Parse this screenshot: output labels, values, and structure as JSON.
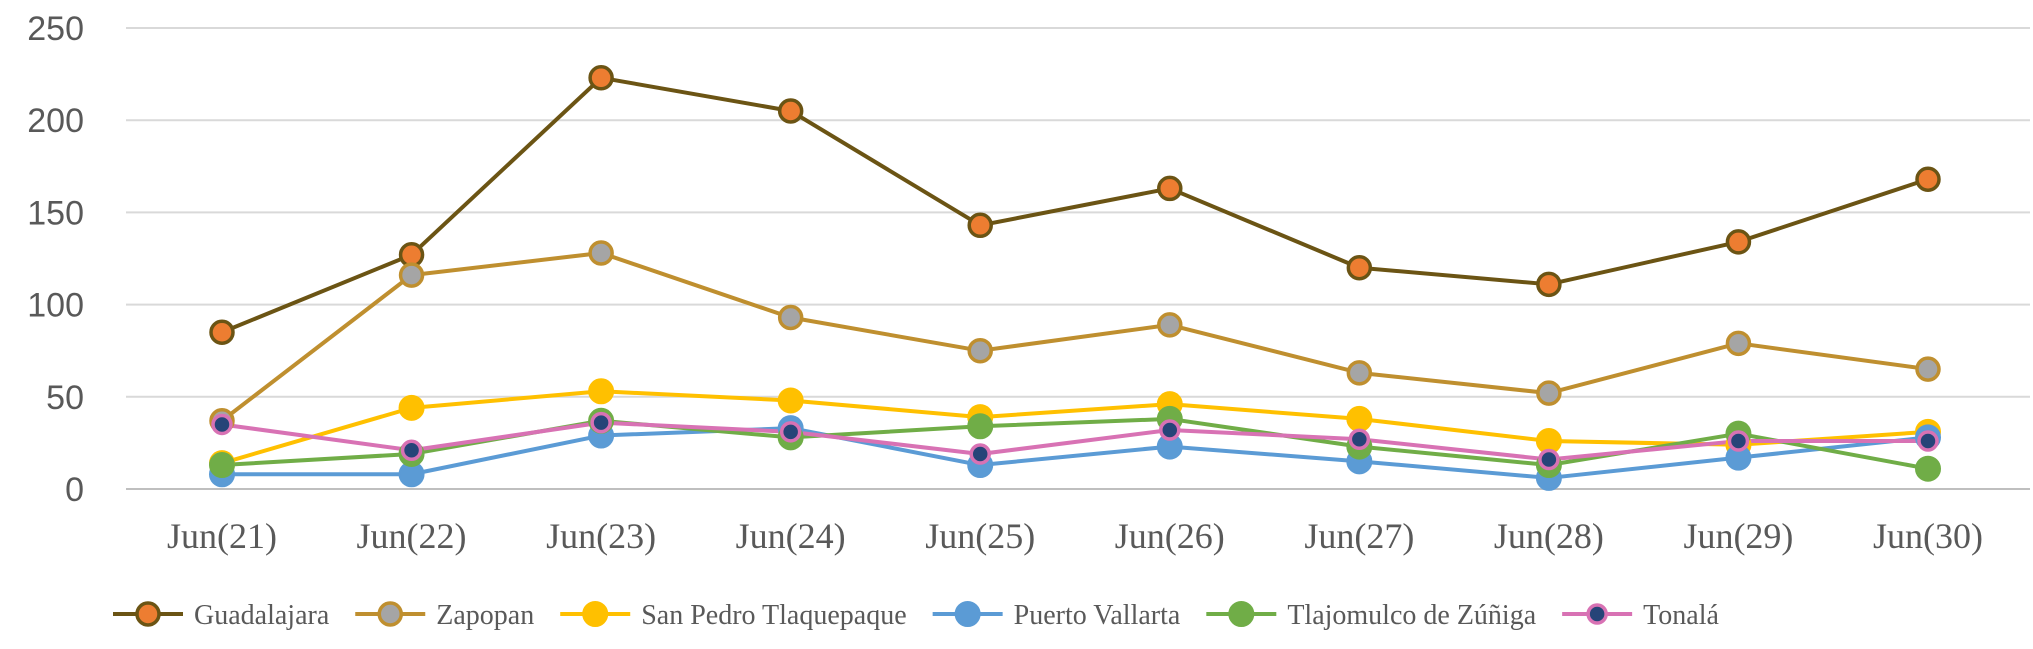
{
  "chart_data": {
    "type": "line",
    "title": "",
    "xlabel": "",
    "ylabel": "",
    "categories": [
      "Jun(21)",
      "Jun(22)",
      "Jun(23)",
      "Jun(24)",
      "Jun(25)",
      "Jun(26)",
      "Jun(27)",
      "Jun(28)",
      "Jun(29)",
      "Jun(30)"
    ],
    "ylim": [
      0,
      250
    ],
    "yticks": [
      0,
      50,
      100,
      150,
      200,
      250
    ],
    "grid": true,
    "legend_position": "bottom",
    "series": [
      {
        "name": "Guadalajara",
        "line_color": "#6b5414",
        "marker_fill": "#ed7d31",
        "marker_edge": "#6b5414",
        "marker_size": "medium",
        "values": [
          85,
          127,
          223,
          205,
          143,
          163,
          120,
          111,
          134,
          168
        ]
      },
      {
        "name": "Zapopan",
        "line_color": "#bf8f2f",
        "marker_fill": "#a5a5a5",
        "marker_edge": "#bf8f2f",
        "marker_size": "medium",
        "values": [
          37,
          116,
          128,
          93,
          75,
          89,
          63,
          52,
          79,
          65
        ]
      },
      {
        "name": "San Pedro Tlaquepaque",
        "line_color": "#ffc000",
        "marker_fill": "#ffc000",
        "marker_edge": "#ffc000",
        "marker_size": "large",
        "values": [
          14,
          44,
          53,
          48,
          39,
          46,
          38,
          26,
          24,
          31
        ]
      },
      {
        "name": "Puerto Vallarta",
        "line_color": "#5b9bd5",
        "marker_fill": "#5b9bd5",
        "marker_edge": "#5b9bd5",
        "marker_size": "large",
        "values": [
          8,
          8,
          29,
          33,
          13,
          23,
          15,
          6,
          17,
          28
        ]
      },
      {
        "name": "Tlajomulco de Zúñiga",
        "line_color": "#70ad47",
        "marker_fill": "#70ad47",
        "marker_edge": "#70ad47",
        "marker_size": "large",
        "values": [
          13,
          19,
          37,
          28,
          34,
          38,
          23,
          13,
          30,
          11
        ]
      },
      {
        "name": "Tonalá",
        "line_color": "#d872b4",
        "marker_fill": "#264478",
        "marker_edge": "#d872b4",
        "marker_size": "small",
        "values": [
          35,
          21,
          36,
          31,
          19,
          32,
          27,
          16,
          26,
          26
        ]
      }
    ]
  }
}
